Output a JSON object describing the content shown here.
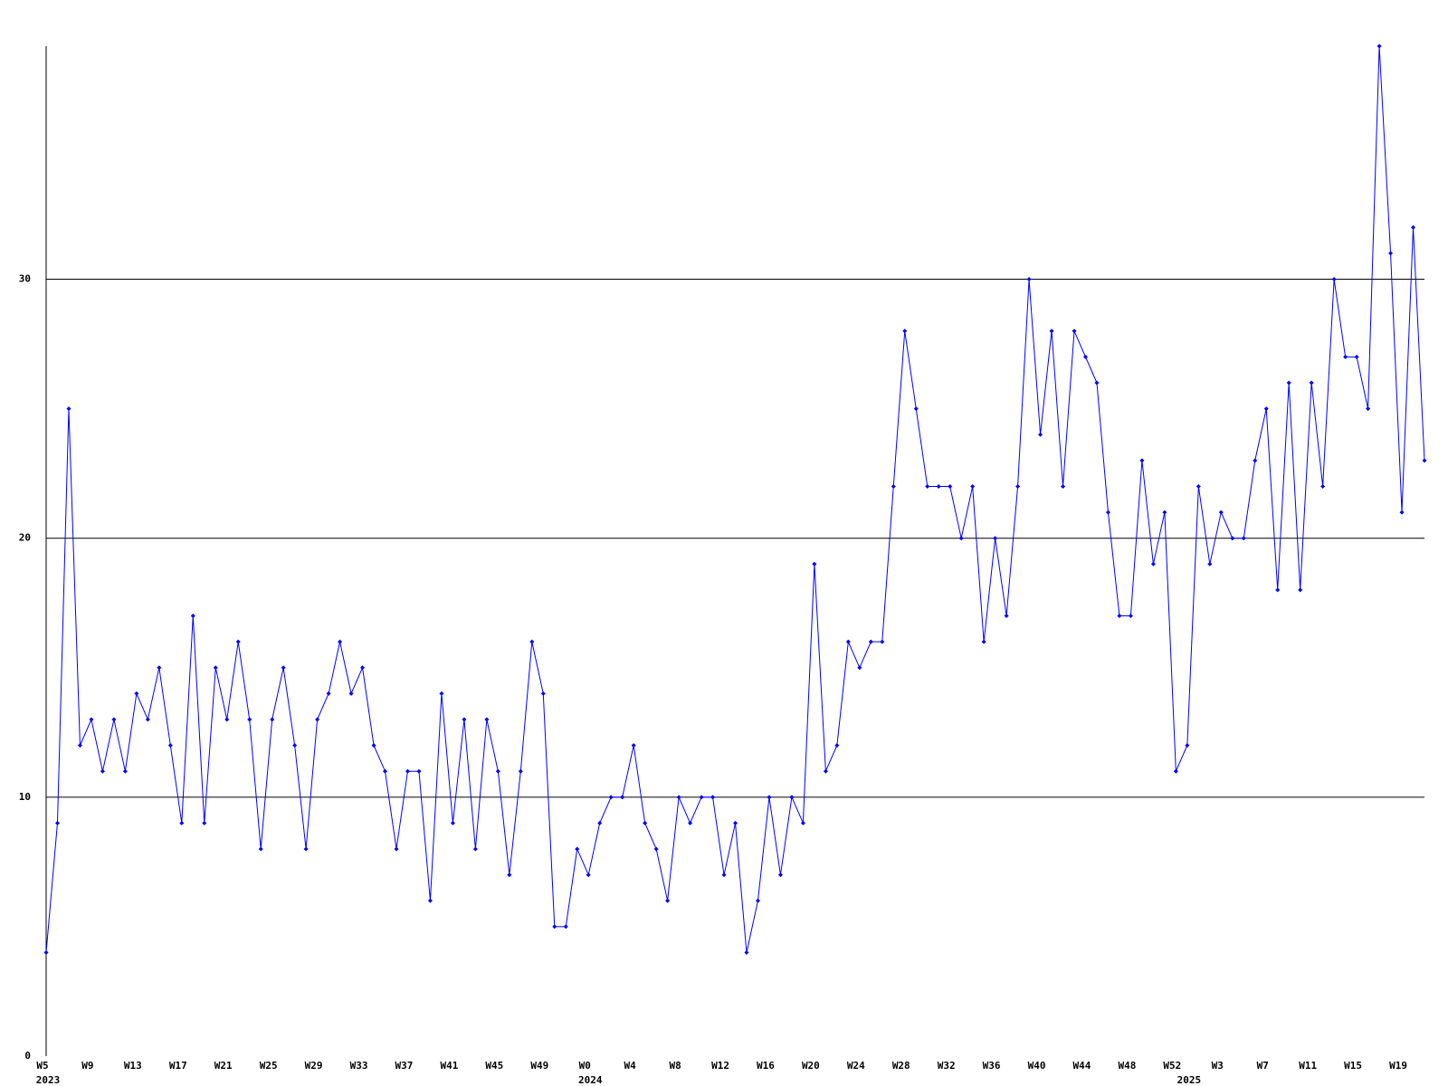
{
  "chart_data": {
    "type": "line",
    "categories": [
      "W5",
      null,
      null,
      null,
      "W9",
      null,
      null,
      null,
      "W13",
      null,
      null,
      null,
      "W17",
      null,
      null,
      null,
      "W21",
      null,
      null,
      null,
      "W25",
      null,
      null,
      null,
      "W29",
      null,
      null,
      null,
      "W33",
      null,
      null,
      null,
      "W37",
      null,
      null,
      null,
      "W41",
      null,
      null,
      null,
      "W45",
      null,
      null,
      null,
      "W49",
      null,
      null,
      null,
      "W0",
      null,
      null,
      null,
      "W4",
      null,
      null,
      null,
      "W8",
      null,
      null,
      null,
      "W12",
      null,
      null,
      null,
      "W16",
      null,
      null,
      null,
      "W20",
      null,
      null,
      null,
      "W24",
      null,
      null,
      null,
      "W28",
      null,
      null,
      null,
      "W32",
      null,
      null,
      null,
      "W36",
      null,
      null,
      null,
      "W40",
      null,
      null,
      null,
      "W44",
      null,
      null,
      null,
      "W48",
      null,
      null,
      null,
      "W52",
      null,
      null,
      null,
      "W3",
      null,
      null,
      null,
      "W7",
      null,
      null,
      null,
      "W11",
      null,
      null,
      null,
      "W15",
      null,
      null,
      null,
      "W19",
      null,
      null
    ],
    "category_years": [
      "2023",
      null,
      null,
      null,
      null,
      null,
      null,
      null,
      null,
      null,
      null,
      null,
      null,
      null,
      null,
      null,
      null,
      null,
      null,
      null,
      null,
      null,
      null,
      null,
      null,
      null,
      null,
      null,
      null,
      null,
      null,
      null,
      null,
      null,
      null,
      null,
      null,
      null,
      null,
      null,
      null,
      null,
      null,
      null,
      null,
      null,
      null,
      null,
      "2024",
      null,
      null,
      null,
      null,
      null,
      null,
      null,
      null,
      null,
      null,
      null,
      null,
      null,
      null,
      null,
      null,
      null,
      null,
      null,
      null,
      null,
      null,
      null,
      null,
      null,
      null,
      null,
      null,
      null,
      null,
      null,
      null,
      null,
      null,
      null,
      null,
      null,
      null,
      null,
      null,
      null,
      null,
      null,
      null,
      null,
      null,
      null,
      null,
      null,
      null,
      null,
      null,
      "2025",
      null,
      null,
      null,
      null,
      null,
      null,
      null,
      null,
      null,
      null,
      null,
      null,
      null,
      null,
      null,
      null,
      null,
      null,
      null,
      null,
      null
    ],
    "values": [
      4,
      9,
      25,
      12,
      13,
      11,
      13,
      11,
      14,
      13,
      15,
      12,
      9,
      17,
      9,
      15,
      13,
      16,
      13,
      8,
      13,
      15,
      12,
      8,
      13,
      14,
      16,
      14,
      15,
      12,
      11,
      8,
      11,
      11,
      6,
      14,
      9,
      13,
      8,
      13,
      11,
      7,
      11,
      16,
      14,
      5,
      5,
      8,
      7,
      9,
      10,
      10,
      12,
      9,
      8,
      6,
      10,
      9,
      10,
      10,
      7,
      9,
      4,
      6,
      10,
      7,
      10,
      9,
      19,
      11,
      12,
      16,
      15,
      16,
      16,
      22,
      28,
      25,
      22,
      22,
      22,
      20,
      22,
      16,
      20,
      17,
      22,
      30,
      24,
      28,
      22,
      28,
      27,
      26,
      21,
      17,
      17,
      23,
      19,
      21,
      11,
      12,
      22,
      19,
      21,
      20,
      20,
      23,
      25,
      18,
      26,
      18,
      26,
      22,
      30,
      27,
      27,
      25,
      39,
      31,
      21,
      32,
      23
    ],
    "color": "#0000ff",
    "ylim": [
      0,
      39
    ],
    "yticks": [
      0,
      10,
      20,
      30
    ],
    "grid": true
  }
}
